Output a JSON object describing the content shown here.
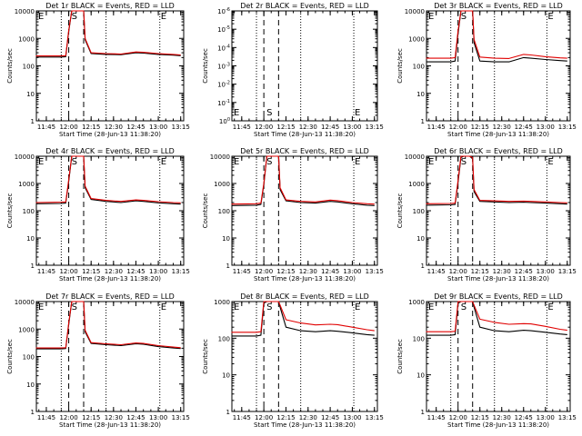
{
  "chart_data": {
    "type": "line",
    "date": "28-Jun-13",
    "x_ticks": [
      "11:45",
      "12:00",
      "12:15",
      "12:30",
      "12:45",
      "13:00",
      "13:15"
    ],
    "xlabel": "Start Time (28-Jun-13 11:38:20)",
    "ylabel": "Counts/sec",
    "y_scale": "log",
    "series_legend": "BLACK = Events, RED = LLD",
    "vlines": {
      "dotted": [
        "11:55",
        "12:25",
        "13:01"
      ],
      "dashed": [
        "12:00",
        "12:10"
      ]
    },
    "panels": [
      {
        "title": "Det 1r BLACK = Events, RED = LLD",
        "ylim": [
          1,
          10000
        ],
        "yticks": [
          "1",
          "10",
          "100",
          "1000",
          "10000"
        ],
        "markers": [
          "E",
          "S",
          "E"
        ],
        "series": [
          {
            "name": "Events",
            "color": "#000000",
            "x": [
              "11:38",
              "11:55",
              "11:58",
              "12:00",
              "12:02",
              "12:04",
              "12:08",
              "12:10",
              "12:11",
              "12:15",
              "12:25",
              "12:35",
              "12:45",
              "12:50",
              "13:00",
              "13:10",
              "13:15"
            ],
            "y": [
              210,
              210,
              215,
              1800,
              10000,
              10000,
              10000,
              10000,
              900,
              280,
              260,
              255,
              300,
              290,
              260,
              245,
              235
            ]
          },
          {
            "name": "LLD",
            "color": "#e00000",
            "x": [
              "11:38",
              "11:55",
              "11:58",
              "12:00",
              "12:02",
              "12:04",
              "12:08",
              "12:10",
              "12:11",
              "12:15",
              "12:25",
              "12:35",
              "12:45",
              "12:50",
              "13:00",
              "13:10",
              "13:15"
            ],
            "y": [
              230,
              230,
              235,
              2000,
              10000,
              10000,
              10000,
              10000,
              1000,
              300,
              280,
              270,
              320,
              310,
              280,
              260,
              250
            ]
          }
        ]
      },
      {
        "title": "Det 2r BLACK = Events, RED = LLD",
        "ylim": [
          1,
          1e-06
        ],
        "yticks": [
          "10^0",
          "10^-1",
          "10^-2",
          "10^-3",
          "10^-4",
          "10^-5",
          "10^-6"
        ],
        "markers": [
          "E",
          "S",
          "E"
        ],
        "series": []
      },
      {
        "title": "Det 3r BLACK = Events, RED = LLD",
        "ylim": [
          1,
          10000
        ],
        "yticks": [
          "1",
          "10",
          "100",
          "1000",
          "10000"
        ],
        "markers": [
          "E",
          "S",
          "E"
        ],
        "series": [
          {
            "name": "Events",
            "color": "#000000",
            "x": [
              "11:38",
              "11:55",
              "11:58",
              "12:00",
              "12:02",
              "12:04",
              "12:08",
              "12:10",
              "12:11",
              "12:15",
              "12:25",
              "12:35",
              "12:45",
              "12:50",
              "13:00",
              "13:10",
              "13:15"
            ],
            "y": [
              140,
              140,
              150,
              1500,
              10000,
              10000,
              10000,
              10000,
              700,
              150,
              140,
              140,
              200,
              190,
              170,
              155,
              150
            ]
          },
          {
            "name": "LLD",
            "color": "#e00000",
            "x": [
              "11:38",
              "11:55",
              "11:58",
              "12:00",
              "12:02",
              "12:04",
              "12:08",
              "12:10",
              "12:11",
              "12:15",
              "12:25",
              "12:35",
              "12:45",
              "12:50",
              "13:00",
              "13:10",
              "13:15"
            ],
            "y": [
              190,
              190,
              200,
              1900,
              10000,
              10000,
              10000,
              10000,
              900,
              210,
              190,
              185,
              260,
              250,
              215,
              195,
              190
            ]
          }
        ]
      },
      {
        "title": "Det 4r BLACK = Events, RED = LLD",
        "ylim": [
          1,
          10000
        ],
        "yticks": [
          "1",
          "10",
          "100",
          "1000",
          "10000"
        ],
        "markers": [
          "E",
          "S",
          "E"
        ],
        "series": [
          {
            "name": "Events",
            "color": "#000000",
            "x": [
              "11:38",
              "11:55",
              "11:58",
              "12:00",
              "12:02",
              "12:04",
              "12:08",
              "12:10",
              "12:11",
              "12:15",
              "12:25",
              "12:35",
              "12:45",
              "12:50",
              "13:00",
              "13:10",
              "13:15"
            ],
            "y": [
              180,
              185,
              190,
              1200,
              10000,
              10000,
              10000,
              10000,
              700,
              260,
              220,
              200,
              230,
              220,
              195,
              180,
              175
            ]
          },
          {
            "name": "LLD",
            "color": "#e00000",
            "x": [
              "11:38",
              "11:55",
              "11:58",
              "12:00",
              "12:02",
              "12:04",
              "12:08",
              "12:10",
              "12:11",
              "12:15",
              "12:25",
              "12:35",
              "12:45",
              "12:50",
              "13:00",
              "13:10",
              "13:15"
            ],
            "y": [
              200,
              205,
              210,
              1400,
              10000,
              10000,
              10000,
              10000,
              800,
              280,
              240,
              220,
              250,
              240,
              215,
              200,
              195
            ]
          }
        ]
      },
      {
        "title": "Det 5r BLACK = Events, RED = LLD",
        "ylim": [
          1,
          10000
        ],
        "yticks": [
          "1",
          "10",
          "100",
          "1000",
          "10000"
        ],
        "markers": [
          "E",
          "S",
          "E"
        ],
        "series": [
          {
            "name": "Events",
            "color": "#000000",
            "x": [
              "11:38",
              "11:55",
              "11:58",
              "12:00",
              "12:02",
              "12:04",
              "12:08",
              "12:10",
              "12:11",
              "12:15",
              "12:25",
              "12:35",
              "12:45",
              "12:50",
              "13:00",
              "13:10",
              "13:15"
            ],
            "y": [
              155,
              160,
              170,
              900,
              10000,
              10000,
              10000,
              10000,
              600,
              230,
              200,
              190,
              220,
              210,
              180,
              160,
              155
            ]
          },
          {
            "name": "LLD",
            "color": "#e00000",
            "x": [
              "11:38",
              "11:55",
              "11:58",
              "12:00",
              "12:02",
              "12:04",
              "12:08",
              "12:10",
              "12:11",
              "12:15",
              "12:25",
              "12:35",
              "12:45",
              "12:50",
              "13:00",
              "13:10",
              "13:15"
            ],
            "y": [
              175,
              180,
              190,
              1000,
              10000,
              10000,
              10000,
              10000,
              700,
              250,
              220,
              210,
              245,
              235,
              200,
              180,
              175
            ]
          }
        ]
      },
      {
        "title": "Det 6r BLACK = Events, RED = LLD",
        "ylim": [
          1,
          10000
        ],
        "yticks": [
          "1",
          "10",
          "100",
          "1000",
          "10000"
        ],
        "markers": [
          "E",
          "S",
          "E"
        ],
        "series": [
          {
            "name": "Events",
            "color": "#000000",
            "x": [
              "11:38",
              "11:55",
              "11:58",
              "12:00",
              "12:02",
              "12:04",
              "12:08",
              "12:10",
              "12:11",
              "12:15",
              "12:25",
              "12:35",
              "12:45",
              "12:50",
              "13:00",
              "13:10",
              "13:15"
            ],
            "y": [
              160,
              165,
              170,
              1100,
              9000,
              10000,
              10000,
              8000,
              500,
              220,
              210,
              200,
              205,
              200,
              190,
              180,
              175
            ]
          },
          {
            "name": "LLD",
            "color": "#e00000",
            "x": [
              "11:38",
              "11:55",
              "11:58",
              "12:00",
              "12:02",
              "12:04",
              "12:08",
              "12:10",
              "12:11",
              "12:15",
              "12:25",
              "12:35",
              "12:45",
              "12:50",
              "13:00",
              "13:10",
              "13:15"
            ],
            "y": [
              180,
              185,
              190,
              1300,
              10000,
              10000,
              10000,
              9000,
              600,
              240,
              230,
              220,
              225,
              220,
              210,
              200,
              195
            ]
          }
        ]
      },
      {
        "title": "Det 7r BLACK = Events, RED = LLD",
        "ylim": [
          1,
          10000
        ],
        "yticks": [
          "1",
          "10",
          "100",
          "1000",
          "10000"
        ],
        "markers": [
          "E",
          "S",
          "E"
        ],
        "series": [
          {
            "name": "Events",
            "color": "#000000",
            "x": [
              "11:38",
              "11:55",
              "11:58",
              "12:00",
              "12:02",
              "12:04",
              "12:08",
              "12:10",
              "12:11",
              "12:15",
              "12:25",
              "12:35",
              "12:45",
              "12:50",
              "13:00",
              "13:10",
              "13:15"
            ],
            "y": [
              190,
              190,
              195,
              1500,
              10000,
              10000,
              10000,
              10000,
              800,
              300,
              270,
              250,
              290,
              280,
              230,
              205,
              195
            ]
          },
          {
            "name": "LLD",
            "color": "#e00000",
            "x": [
              "11:38",
              "11:55",
              "11:58",
              "12:00",
              "12:02",
              "12:04",
              "12:08",
              "12:10",
              "12:11",
              "12:15",
              "12:25",
              "12:35",
              "12:45",
              "12:50",
              "13:00",
              "13:10",
              "13:15"
            ],
            "y": [
              205,
              205,
              210,
              1700,
              10000,
              10000,
              10000,
              10000,
              900,
              320,
              290,
              270,
              310,
              300,
              250,
              220,
              210
            ]
          }
        ]
      },
      {
        "title": "Det 8r BLACK = Events, RED = LLD",
        "ylim": [
          1,
          1000
        ],
        "yticks": [
          "1",
          "10",
          "100",
          "1000"
        ],
        "markers": [
          "E",
          "S",
          "E"
        ],
        "series": [
          {
            "name": "Events",
            "color": "#000000",
            "x": [
              "11:38",
              "11:55",
              "11:58",
              "12:00",
              "12:02",
              "12:04",
              "12:08",
              "12:10",
              "12:11",
              "12:15",
              "12:25",
              "12:35",
              "12:45",
              "12:50",
              "13:00",
              "13:10",
              "13:15"
            ],
            "y": [
              115,
              115,
              120,
              900,
              1000,
              1000,
              1000,
              1000,
              700,
              200,
              160,
              150,
              160,
              155,
              140,
              125,
              120
            ]
          },
          {
            "name": "LLD",
            "color": "#e00000",
            "x": [
              "11:38",
              "11:55",
              "11:58",
              "12:00",
              "12:02",
              "12:04",
              "12:08",
              "12:10",
              "12:11",
              "12:15",
              "12:25",
              "12:35",
              "12:45",
              "12:50",
              "13:00",
              "13:10",
              "13:15"
            ],
            "y": [
              145,
              145,
              150,
              1000,
              1000,
              1000,
              1000,
              1000,
              800,
              320,
              260,
              230,
              240,
              235,
              200,
              170,
              160
            ]
          }
        ]
      },
      {
        "title": "Det 9r BLACK = Events, RED = LLD",
        "ylim": [
          1,
          1000
        ],
        "yticks": [
          "1",
          "10",
          "100",
          "1000"
        ],
        "markers": [
          "E",
          "S",
          "E"
        ],
        "series": [
          {
            "name": "Events",
            "color": "#000000",
            "x": [
              "11:38",
              "11:55",
              "11:58",
              "12:00",
              "12:02",
              "12:04",
              "12:08",
              "12:10",
              "12:11",
              "12:15",
              "12:25",
              "12:35",
              "12:45",
              "12:50",
              "13:00",
              "13:10",
              "13:15"
            ],
            "y": [
              120,
              120,
              125,
              900,
              1000,
              1000,
              1000,
              1000,
              700,
              200,
              160,
              150,
              165,
              160,
              145,
              130,
              125
            ]
          },
          {
            "name": "LLD",
            "color": "#e00000",
            "x": [
              "11:38",
              "11:55",
              "11:58",
              "12:00",
              "12:02",
              "12:04",
              "12:08",
              "12:10",
              "12:11",
              "12:15",
              "12:25",
              "12:35",
              "12:45",
              "12:50",
              "13:00",
              "13:10",
              "13:15"
            ],
            "y": [
              150,
              150,
              155,
              1000,
              1000,
              1000,
              1000,
              1000,
              800,
              330,
              270,
              240,
              250,
              245,
              210,
              175,
              165
            ]
          }
        ]
      }
    ]
  }
}
